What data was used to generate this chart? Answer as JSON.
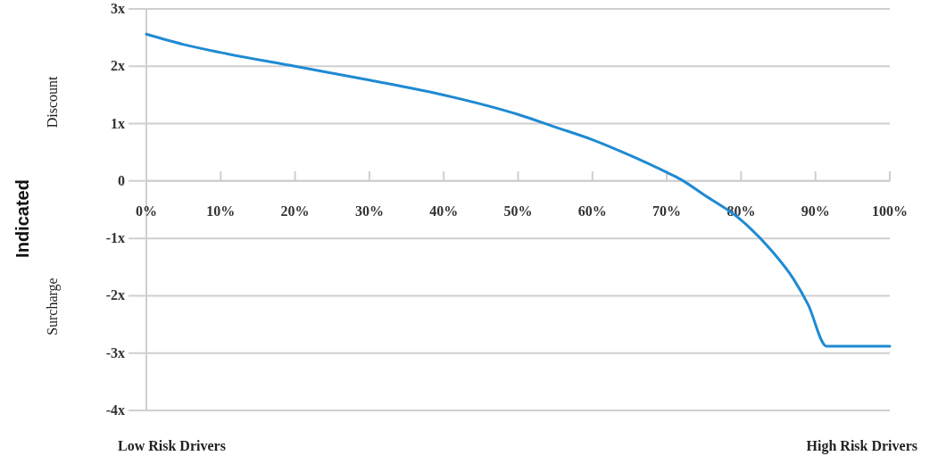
{
  "chart_data": {
    "type": "line",
    "ylabel": "Indicated",
    "annotations": [
      "Discount",
      "Surcharge",
      "Low Risk Drivers",
      "High Risk Drivers"
    ],
    "x": [
      0,
      5,
      10,
      20,
      30,
      40,
      50,
      55,
      60,
      65,
      70,
      72,
      75,
      80,
      84,
      87,
      89,
      91.5,
      100
    ],
    "series": [
      {
        "color": "#1f8ad2",
        "values": [
          2.56,
          2.38,
          2.24,
          2.0,
          1.76,
          1.5,
          1.16,
          0.94,
          0.72,
          0.45,
          0.15,
          0.02,
          -0.24,
          -0.68,
          -1.2,
          -1.7,
          -2.15,
          -2.88,
          -2.88
        ]
      }
    ],
    "xlim": [
      0,
      100
    ],
    "xticks": [
      {
        "value": 0,
        "label": "0%"
      },
      {
        "value": 10,
        "label": "10%"
      },
      {
        "value": 20,
        "label": "20%"
      },
      {
        "value": 30,
        "label": "30%"
      },
      {
        "value": 40,
        "label": "40%"
      },
      {
        "value": 50,
        "label": "50%"
      },
      {
        "value": 60,
        "label": "60%"
      },
      {
        "value": 70,
        "label": "70%"
      },
      {
        "value": 80,
        "label": "80%"
      },
      {
        "value": 90,
        "label": "90%"
      },
      {
        "value": 100,
        "label": "100%"
      }
    ],
    "ylim": [
      -4,
      3
    ],
    "yticks": [
      {
        "value": -4,
        "label": "-4x"
      },
      {
        "value": -3,
        "label": "-3x"
      },
      {
        "value": -2,
        "label": "-2x"
      },
      {
        "value": -1,
        "label": "-1x"
      },
      0,
      {
        "value": 1,
        "label": "1x"
      },
      {
        "value": 2,
        "label": "2x"
      },
      {
        "value": 3,
        "label": "3x"
      }
    ],
    "grid": "y",
    "marker": "none",
    "line_style": "solid"
  }
}
